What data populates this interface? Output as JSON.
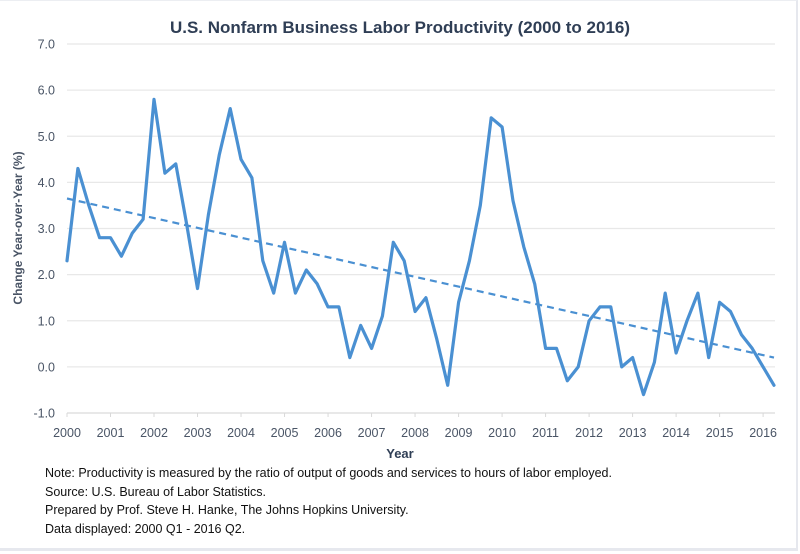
{
  "chart_data": {
    "type": "line",
    "title": "U.S. Nonfarm Business Labor Productivity (2000 to 2016)",
    "xlabel": "Year",
    "ylabel": "Change Year-over-Year (%)",
    "ylim": [
      -1.0,
      7.0
    ],
    "yticks": [
      "7.0",
      "6.0",
      "5.0",
      "4.0",
      "3.0",
      "2.0",
      "1.0",
      "0.0",
      "-1.0"
    ],
    "ytick_values": [
      7,
      6,
      5,
      4,
      3,
      2,
      1,
      0,
      -1
    ],
    "xticks": [
      "2000",
      "2001",
      "2002",
      "2003",
      "2004",
      "2005",
      "2006",
      "2007",
      "2008",
      "2009",
      "2010",
      "2011",
      "2012",
      "2013",
      "2014",
      "2015",
      "2016"
    ],
    "grid": true,
    "legend": "none",
    "series": [
      {
        "name": "Labor productivity YoY change",
        "style": "solid",
        "color": "#4a90d2",
        "x": [
          "2000 Q1",
          "2000 Q2",
          "2000 Q3",
          "2000 Q4",
          "2001 Q1",
          "2001 Q2",
          "2001 Q3",
          "2001 Q4",
          "2002 Q1",
          "2002 Q2",
          "2002 Q3",
          "2002 Q4",
          "2003 Q1",
          "2003 Q2",
          "2003 Q3",
          "2003 Q4",
          "2004 Q1",
          "2004 Q2",
          "2004 Q3",
          "2004 Q4",
          "2005 Q1",
          "2005 Q2",
          "2005 Q3",
          "2005 Q4",
          "2006 Q1",
          "2006 Q2",
          "2006 Q3",
          "2006 Q4",
          "2007 Q1",
          "2007 Q2",
          "2007 Q3",
          "2007 Q4",
          "2008 Q1",
          "2008 Q2",
          "2008 Q3",
          "2008 Q4",
          "2009 Q1",
          "2009 Q2",
          "2009 Q3",
          "2009 Q4",
          "2010 Q1",
          "2010 Q2",
          "2010 Q3",
          "2010 Q4",
          "2011 Q1",
          "2011 Q2",
          "2011 Q3",
          "2011 Q4",
          "2012 Q1",
          "2012 Q2",
          "2012 Q3",
          "2012 Q4",
          "2013 Q1",
          "2013 Q2",
          "2013 Q3",
          "2013 Q4",
          "2014 Q1",
          "2014 Q2",
          "2014 Q3",
          "2014 Q4",
          "2015 Q1",
          "2015 Q2",
          "2015 Q3",
          "2015 Q4",
          "2016 Q1",
          "2016 Q2"
        ],
        "values": [
          2.3,
          4.3,
          3.5,
          2.8,
          2.8,
          2.4,
          2.9,
          3.2,
          5.8,
          4.2,
          4.4,
          3.1,
          1.7,
          3.3,
          4.6,
          5.6,
          4.5,
          4.1,
          2.3,
          1.6,
          2.7,
          1.6,
          2.1,
          1.8,
          1.3,
          1.3,
          0.2,
          0.9,
          0.4,
          1.1,
          2.7,
          2.3,
          1.2,
          1.5,
          0.6,
          -0.4,
          1.4,
          2.3,
          3.5,
          5.4,
          5.2,
          3.6,
          2.6,
          1.8,
          0.4,
          0.4,
          -0.3,
          0.0,
          1.0,
          1.3,
          1.3,
          0.0,
          0.2,
          -0.6,
          0.1,
          1.6,
          0.3,
          1.0,
          1.6,
          0.2,
          1.4,
          1.2,
          0.7,
          0.4,
          0.0,
          -0.4
        ]
      },
      {
        "name": "Linear trend",
        "style": "dashed",
        "color": "#4a90d2",
        "x": [
          "2000 Q1",
          "2016 Q2"
        ],
        "values": [
          3.65,
          0.2
        ]
      }
    ]
  },
  "notes": {
    "note": "Note: Productivity is measured by the ratio of output of goods and services to hours of labor employed.",
    "source": "Source: U.S. Bureau of Labor Statistics.",
    "prepared_by": "Prepared by Prof. Steve H. Hanke, The Johns Hopkins University.",
    "data_displayed": "Data displayed: 2000 Q1 - 2016 Q2."
  }
}
